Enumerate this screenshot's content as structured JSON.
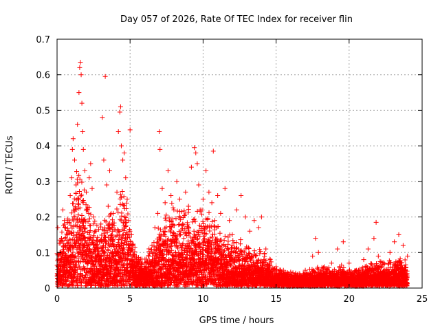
{
  "chart_data": {
    "type": "scatter",
    "title": "Day 057 of 2026, Rate Of TEC Index for receiver flin",
    "xlabel": "GPS time / hours",
    "ylabel": "ROTI / TECUs",
    "xlim": [
      0,
      25
    ],
    "ylim": [
      0,
      0.7
    ],
    "xticks": [
      0,
      5,
      10,
      15,
      20,
      25
    ],
    "xtick_labels": [
      "0",
      "5",
      "10",
      "15",
      "20",
      "25"
    ],
    "yticks": [
      0,
      0.1,
      0.2,
      0.3,
      0.4,
      0.5,
      0.6,
      0.7
    ],
    "ytick_labels": [
      "0",
      "0.1",
      "0.2",
      "0.3",
      "0.4",
      "0.5",
      "0.6",
      "0.7"
    ],
    "grid": true,
    "marker": "plus",
    "color": "#ff0000",
    "series": [
      {
        "name": "ROTI",
        "points": [
          [
            0.05,
            0.17
          ],
          [
            0.1,
            0.06
          ],
          [
            0.2,
            0.1
          ],
          [
            0.3,
            0.14
          ],
          [
            0.4,
            0.22
          ],
          [
            0.5,
            0.19
          ],
          [
            0.6,
            0.12
          ],
          [
            0.7,
            0.08
          ],
          [
            0.8,
            0.16
          ],
          [
            0.9,
            0.26
          ],
          [
            1.0,
            0.31
          ],
          [
            1.05,
            0.39
          ],
          [
            1.1,
            0.42
          ],
          [
            1.2,
            0.36
          ],
          [
            1.3,
            0.29
          ],
          [
            1.4,
            0.46
          ],
          [
            1.5,
            0.55
          ],
          [
            1.55,
            0.62
          ],
          [
            1.6,
            0.635
          ],
          [
            1.65,
            0.6
          ],
          [
            1.7,
            0.52
          ],
          [
            1.75,
            0.44
          ],
          [
            1.8,
            0.39
          ],
          [
            1.9,
            0.33
          ],
          [
            2.0,
            0.27
          ],
          [
            2.1,
            0.22
          ],
          [
            2.2,
            0.31
          ],
          [
            2.3,
            0.35
          ],
          [
            2.4,
            0.28
          ],
          [
            2.5,
            0.2
          ],
          [
            2.6,
            0.16
          ],
          [
            2.7,
            0.12
          ],
          [
            2.8,
            0.09
          ],
          [
            2.9,
            0.13
          ],
          [
            3.0,
            0.18
          ],
          [
            3.1,
            0.48
          ],
          [
            3.2,
            0.36
          ],
          [
            3.3,
            0.595
          ],
          [
            3.4,
            0.29
          ],
          [
            3.5,
            0.23
          ],
          [
            3.6,
            0.33
          ],
          [
            3.7,
            0.21
          ],
          [
            3.8,
            0.16
          ],
          [
            3.9,
            0.12
          ],
          [
            4.0,
            0.1
          ],
          [
            4.1,
            0.27
          ],
          [
            4.2,
            0.44
          ],
          [
            4.3,
            0.495
          ],
          [
            4.35,
            0.51
          ],
          [
            4.4,
            0.4
          ],
          [
            4.5,
            0.36
          ],
          [
            4.6,
            0.38
          ],
          [
            4.7,
            0.31
          ],
          [
            4.8,
            0.25
          ],
          [
            4.9,
            0.19
          ],
          [
            5.0,
            0.445
          ],
          [
            5.1,
            0.15
          ],
          [
            5.2,
            0.12
          ],
          [
            5.3,
            0.09
          ],
          [
            5.5,
            0.06
          ],
          [
            5.7,
            0.05
          ],
          [
            5.9,
            0.04
          ],
          [
            6.1,
            0.06
          ],
          [
            6.3,
            0.09
          ],
          [
            6.5,
            0.12
          ],
          [
            6.7,
            0.17
          ],
          [
            6.9,
            0.21
          ],
          [
            7.0,
            0.44
          ],
          [
            7.05,
            0.39
          ],
          [
            7.2,
            0.28
          ],
          [
            7.4,
            0.24
          ],
          [
            7.6,
            0.33
          ],
          [
            7.8,
            0.26
          ],
          [
            8.0,
            0.22
          ],
          [
            8.2,
            0.3
          ],
          [
            8.4,
            0.25
          ],
          [
            8.6,
            0.18
          ],
          [
            8.8,
            0.27
          ],
          [
            9.0,
            0.23
          ],
          [
            9.2,
            0.34
          ],
          [
            9.4,
            0.395
          ],
          [
            9.5,
            0.38
          ],
          [
            9.6,
            0.35
          ],
          [
            9.7,
            0.29
          ],
          [
            9.8,
            0.22
          ],
          [
            10.0,
            0.25
          ],
          [
            10.2,
            0.33
          ],
          [
            10.4,
            0.27
          ],
          [
            10.6,
            0.24
          ],
          [
            10.7,
            0.385
          ],
          [
            10.8,
            0.19
          ],
          [
            11.0,
            0.26
          ],
          [
            11.2,
            0.21
          ],
          [
            11.5,
            0.28
          ],
          [
            11.8,
            0.19
          ],
          [
            12.0,
            0.15
          ],
          [
            12.3,
            0.22
          ],
          [
            12.6,
            0.26
          ],
          [
            12.9,
            0.2
          ],
          [
            13.2,
            0.16
          ],
          [
            13.5,
            0.19
          ],
          [
            13.8,
            0.17
          ],
          [
            14.0,
            0.2
          ],
          [
            14.3,
            0.11
          ],
          [
            14.6,
            0.08
          ],
          [
            15.0,
            0.06
          ],
          [
            15.5,
            0.05
          ],
          [
            16.0,
            0.045
          ],
          [
            16.5,
            0.04
          ],
          [
            17.0,
            0.05
          ],
          [
            17.5,
            0.09
          ],
          [
            17.7,
            0.14
          ],
          [
            17.9,
            0.1
          ],
          [
            18.3,
            0.06
          ],
          [
            18.8,
            0.07
          ],
          [
            19.2,
            0.11
          ],
          [
            19.6,
            0.13
          ],
          [
            20.0,
            0.07
          ],
          [
            20.5,
            0.05
          ],
          [
            21.0,
            0.08
          ],
          [
            21.3,
            0.11
          ],
          [
            21.7,
            0.14
          ],
          [
            21.85,
            0.185
          ],
          [
            22.0,
            0.09
          ],
          [
            22.4,
            0.07
          ],
          [
            22.8,
            0.1
          ],
          [
            23.1,
            0.13
          ],
          [
            23.4,
            0.15
          ],
          [
            23.7,
            0.12
          ],
          [
            24.0,
            0.09
          ]
        ]
      }
    ],
    "density_profile": {
      "hours": [
        0,
        0.5,
        1,
        1.5,
        2,
        2.5,
        3,
        3.5,
        4,
        4.5,
        5,
        5.5,
        6,
        6.5,
        7,
        7.5,
        8,
        8.5,
        9,
        9.5,
        10,
        10.5,
        11,
        11.5,
        12,
        12.5,
        13,
        13.5,
        14,
        14.5,
        15,
        15.5,
        16,
        16.5,
        17,
        17.5,
        18,
        18.5,
        19,
        19.5,
        20,
        20.5,
        21,
        21.5,
        22,
        22.5,
        23,
        23.5,
        24
      ],
      "typical_roti": [
        0.08,
        0.14,
        0.2,
        0.26,
        0.19,
        0.15,
        0.13,
        0.17,
        0.16,
        0.22,
        0.14,
        0.07,
        0.06,
        0.09,
        0.13,
        0.16,
        0.18,
        0.17,
        0.16,
        0.18,
        0.17,
        0.15,
        0.13,
        0.12,
        0.1,
        0.1,
        0.09,
        0.08,
        0.08,
        0.06,
        0.04,
        0.035,
        0.03,
        0.03,
        0.03,
        0.04,
        0.045,
        0.04,
        0.04,
        0.045,
        0.035,
        0.035,
        0.04,
        0.05,
        0.055,
        0.05,
        0.06,
        0.07,
        0.05
      ]
    }
  }
}
